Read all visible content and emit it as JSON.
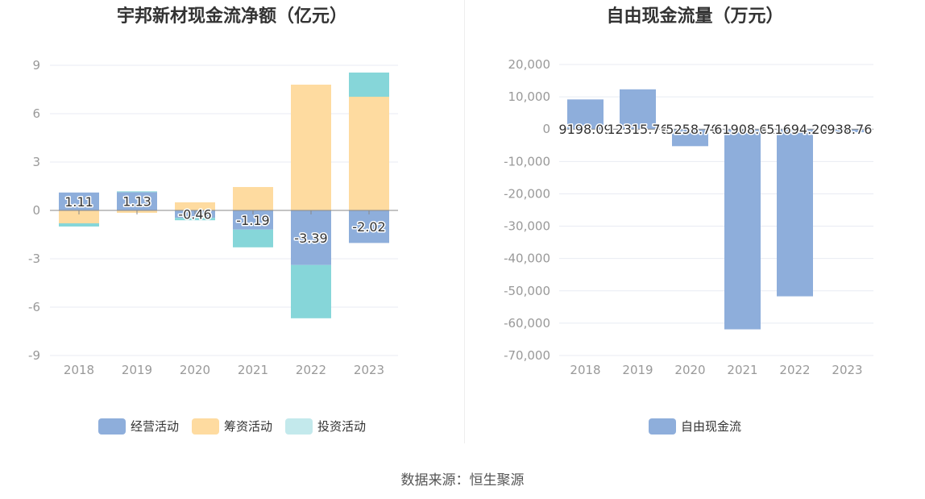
{
  "chart_data": [
    {
      "type": "bar",
      "stacked": true,
      "title": "宇邦新材现金流净额（亿元）",
      "categories": [
        "2018",
        "2019",
        "2020",
        "2021",
        "2022",
        "2023"
      ],
      "series": [
        {
          "name": "经营活动",
          "color": "#8eaedb",
          "values": [
            1.11,
            1.13,
            -0.46,
            -1.19,
            -3.39,
            -2.02
          ]
        },
        {
          "name": "筹资活动",
          "color": "#fedba0",
          "values": [
            -0.8,
            -0.15,
            0.5,
            1.45,
            7.8,
            7.05
          ]
        },
        {
          "name": "投资活动",
          "color": "#86d6d9",
          "values": [
            -0.2,
            0.05,
            -0.15,
            -1.1,
            -3.3,
            1.5
          ]
        }
      ],
      "labeled_series": "经营活动",
      "data_labels": [
        "1.11",
        "1.13",
        "-0.46",
        "-1.19",
        "-3.39",
        "-2.02"
      ],
      "yticks": [
        9,
        6,
        3,
        0,
        -3,
        -6,
        -9
      ],
      "ylim": [
        -9,
        9
      ],
      "legend": [
        "经营活动",
        "筹资活动",
        "投资活动"
      ],
      "legend_colors": [
        "#8eaedb",
        "#fedba0",
        "#c3e9ec"
      ]
    },
    {
      "type": "bar",
      "title": "自由现金流量（万元）",
      "categories": [
        "2018",
        "2019",
        "2020",
        "2021",
        "2022",
        "2023"
      ],
      "series": [
        {
          "name": "自由现金流",
          "color": "#8eaedb",
          "values": [
            9198.09,
            12315.76,
            -5258.7,
            -61908.61,
            -51694.2,
            -938.76
          ]
        }
      ],
      "data_labels": [
        "9198.09",
        "12315.76",
        "-5258.70",
        "-61908.61",
        "-51694.20",
        "-938.76"
      ],
      "yticks": [
        "20,000",
        "10,000",
        "0",
        "-10,000",
        "-20,000",
        "-30,000",
        "-40,000",
        "-50,000",
        "-60,000",
        "-70,000"
      ],
      "ylim": [
        -70000,
        20000
      ],
      "legend": [
        "自由现金流"
      ],
      "legend_colors": [
        "#8eaedb"
      ]
    }
  ],
  "source": "数据来源：恒生聚源"
}
